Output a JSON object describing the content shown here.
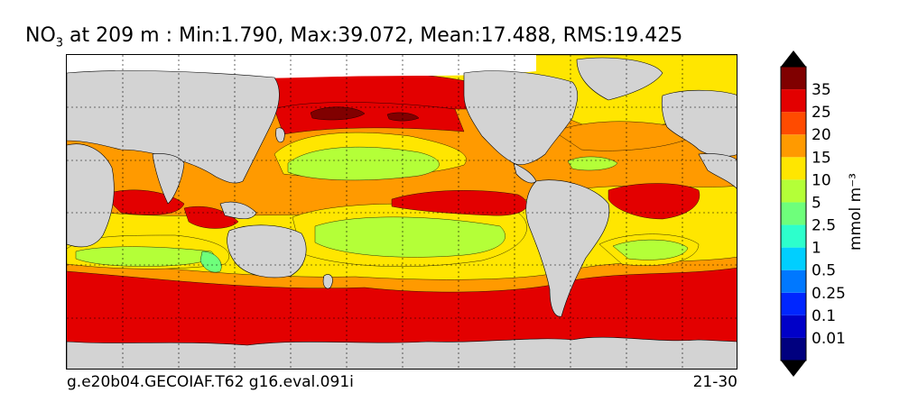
{
  "figure": {
    "title_var": "NO",
    "title_sub": "3",
    "title_rest": " at 209 m : Min:1.790, Max:39.072, Mean:17.488, RMS:19.425",
    "footer_left": "g.e20b04.GECOIAF.T62 g16.eval.091i",
    "footer_right": "21-30"
  },
  "colorbar": {
    "unit_label": "mmol m⁻³",
    "levels": [
      {
        "label": "",
        "color": "#00007f"
      },
      {
        "label": "0.01",
        "color": "#0000c8"
      },
      {
        "label": "0.1",
        "color": "#0026ff"
      },
      {
        "label": "0.25",
        "color": "#0078ff"
      },
      {
        "label": "0.5",
        "color": "#00cfff"
      },
      {
        "label": "1",
        "color": "#2dffcc"
      },
      {
        "label": "2.5",
        "color": "#6eff7b"
      },
      {
        "label": "5",
        "color": "#b4ff38"
      },
      {
        "label": "10",
        "color": "#ffe600"
      },
      {
        "label": "15",
        "color": "#ff9a00"
      },
      {
        "label": "20",
        "color": "#ff4b00"
      },
      {
        "label": "25",
        "color": "#e30000"
      },
      {
        "label": "35",
        "color": "#800000"
      }
    ],
    "extend": "both"
  },
  "colors": {
    "land": "#d3d3d3",
    "ice": "#ffffff"
  }
}
